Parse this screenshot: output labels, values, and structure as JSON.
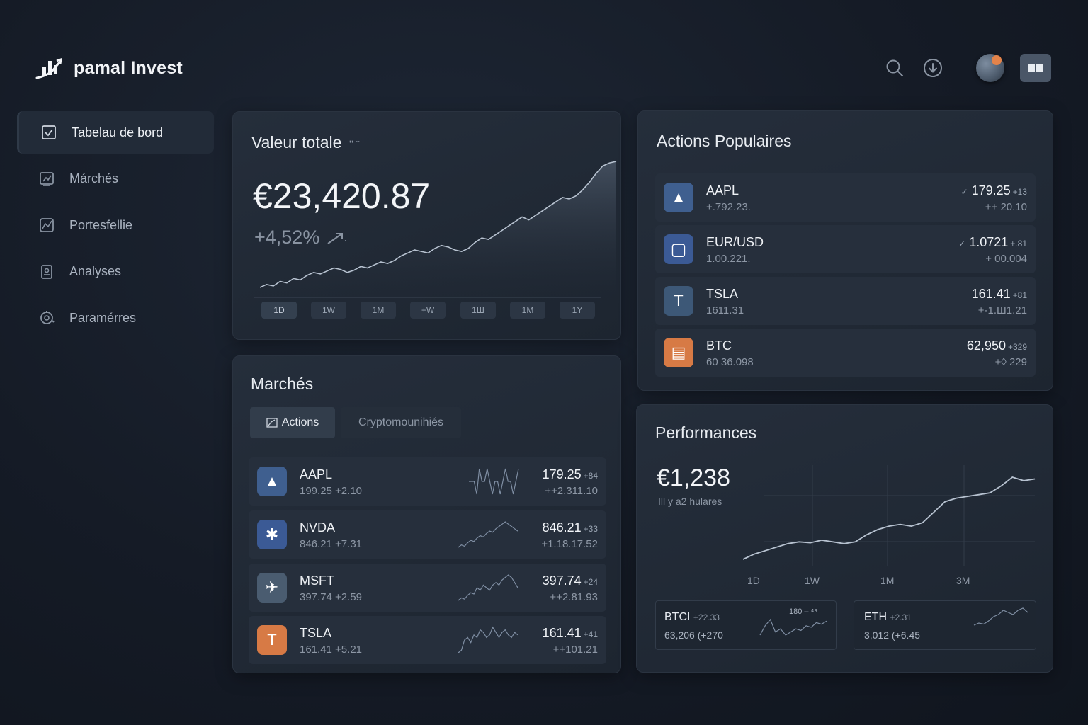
{
  "app": {
    "name": "pamal Invest"
  },
  "header": {
    "icons": [
      "search-icon",
      "download-icon",
      "avatar",
      "grid-icon"
    ]
  },
  "sidebar": {
    "items": [
      {
        "label": "Tabelau de bord",
        "icon": "checkbox-icon",
        "active": true
      },
      {
        "label": "Márchés",
        "icon": "chart-icon"
      },
      {
        "label": "Portesfellie",
        "icon": "portfolio-icon"
      },
      {
        "label": "Analyses",
        "icon": "analyses-icon"
      },
      {
        "label": "Paramérres",
        "icon": "settings-icon"
      }
    ]
  },
  "total": {
    "title": "Valeur totale",
    "title_suffix": "ʼʼ ˇ",
    "value": "€23,420.87",
    "change": "+4,52%",
    "ranges": [
      "1D",
      "1W",
      "1M",
      "+W",
      "1Ш",
      "1M",
      "1Y"
    ],
    "active_range": 0,
    "chart_data": {
      "type": "area",
      "y": [
        10,
        14,
        12,
        18,
        16,
        22,
        20,
        26,
        30,
        28,
        32,
        36,
        34,
        30,
        33,
        38,
        36,
        40,
        44,
        42,
        46,
        52,
        56,
        60,
        58,
        56,
        62,
        66,
        64,
        60,
        58,
        62,
        70,
        76,
        74,
        80,
        86,
        92,
        98,
        104,
        100,
        106,
        112,
        118,
        124,
        130,
        128,
        132,
        140,
        150,
        162,
        172,
        176,
        178
      ]
    }
  },
  "popular": {
    "title": "Actions Populaires",
    "items": [
      {
        "name": "AAPL",
        "sub": "+.792.23.",
        "price": "179.25",
        "price_prefix": "✓",
        "price_small": "+13",
        "change": "++ 20.10",
        "color": "#3f5f8f",
        "icon": "aapl-logo-icon",
        "glyph": "▲"
      },
      {
        "name": "EUR/USD",
        "sub": "1.00.221.",
        "price": "1.0721",
        "price_prefix": "✓",
        "price_small": "+.81",
        "change": "+ 00.004",
        "color": "#3b5a95",
        "icon": "eurusd-logo-icon",
        "glyph": "▢"
      },
      {
        "name": "TSLA",
        "sub": "1611.31",
        "price": "161.41",
        "price_prefix": "",
        "price_small": "+81",
        "change": "+-1.Ш1.21",
        "color": "#3d5877",
        "icon": "tsla-logo-icon",
        "glyph": "T"
      },
      {
        "name": "BTC",
        "sub": "60 36.098",
        "price": "62,950",
        "price_prefix": "",
        "price_small": "+329",
        "change": "+◊ 229",
        "color": "#d77a45",
        "icon": "btc-logo-icon",
        "glyph": "▤"
      }
    ]
  },
  "markets": {
    "title": "Marchés",
    "tabs": [
      "Actions",
      "Cryptomounihiés"
    ],
    "active_tab": 0,
    "items": [
      {
        "name": "AAPL",
        "sub": "199.25  +2.10",
        "price": "179.25",
        "price_small": "+84",
        "change": "++2.311.10",
        "color": "#3f5f8f",
        "icon": "aapl-logo-icon",
        "glyph": "▲",
        "spark": [
          5,
          5,
          5,
          4,
          6,
          5,
          5,
          6,
          5,
          4,
          5,
          5,
          4,
          5,
          6,
          5,
          5,
          4,
          5,
          6
        ]
      },
      {
        "name": "NVDA",
        "sub": "846.21   +7.31",
        "price": "846.21",
        "price_small": "+33",
        "change": "+1.18.17.52",
        "color": "#3b5a95",
        "icon": "nvda-logo-icon",
        "glyph": "✱",
        "spark": [
          2,
          4,
          3,
          6,
          8,
          7,
          10,
          12,
          11,
          14,
          16,
          15,
          18,
          20,
          22,
          24,
          22,
          20,
          18,
          16
        ]
      },
      {
        "name": "MSFT",
        "sub": "397.74   +2.59",
        "price": "397.74",
        "price_small": "+24",
        "change": "++2.81.93",
        "color": "#4a5c70",
        "icon": "msft-logo-icon",
        "glyph": "✈",
        "spark": [
          4,
          6,
          5,
          8,
          10,
          9,
          14,
          12,
          16,
          14,
          12,
          16,
          18,
          16,
          20,
          22,
          24,
          22,
          18,
          14
        ]
      },
      {
        "name": "TSLA",
        "sub": "161.41   +5.21",
        "price": "161.41",
        "price_small": "+41",
        "change": "++101.21",
        "color": "#d77a45",
        "icon": "tsla-logo-icon",
        "glyph": "T",
        "spark": [
          2,
          4,
          12,
          14,
          10,
          16,
          14,
          20,
          18,
          14,
          16,
          22,
          18,
          14,
          18,
          20,
          16,
          14,
          18,
          16
        ]
      }
    ]
  },
  "performance": {
    "title": "Performances",
    "value": "€1,238",
    "sub": "Ill y a2 hulares",
    "axis": [
      "1D",
      "1W",
      "1M",
      "3M"
    ],
    "chart_data": {
      "type": "line",
      "y": [
        2,
        8,
        12,
        16,
        20,
        22,
        21,
        24,
        22,
        20,
        22,
        30,
        36,
        40,
        42,
        40,
        44,
        56,
        68,
        72,
        74,
        76,
        78,
        86,
        96,
        92,
        94
      ]
    },
    "minis": [
      {
        "name": "BTCI",
        "small": "+22.33",
        "value": "63,206 (+270",
        "extra": "180 – ⁴⁸",
        "spark": [
          4,
          10,
          14,
          6,
          8,
          4,
          6,
          8,
          7,
          10,
          9,
          12,
          11,
          13
        ]
      },
      {
        "name": "ETH",
        "small": "+2.31",
        "value": "3,012 (+6.45",
        "extra": "",
        "spark": [
          2,
          4,
          3,
          6,
          10,
          12,
          16,
          14,
          12,
          16,
          18,
          14
        ]
      }
    ]
  }
}
